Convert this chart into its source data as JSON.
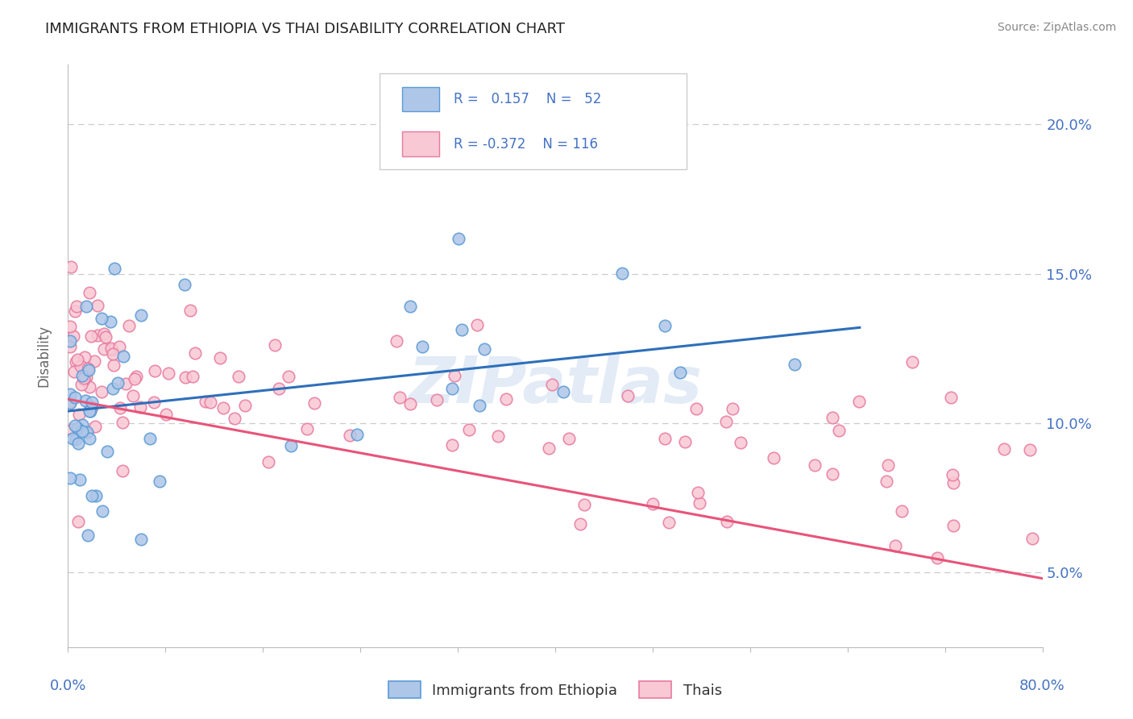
{
  "title": "IMMIGRANTS FROM ETHIOPIA VS THAI DISABILITY CORRELATION CHART",
  "source": "Source: ZipAtlas.com",
  "ylabel": "Disability",
  "ytick_values": [
    5.0,
    10.0,
    15.0,
    20.0
  ],
  "xmin": 0.0,
  "xmax": 80.0,
  "ymin": 2.5,
  "ymax": 22.0,
  "blue_R": 0.157,
  "blue_N": 52,
  "pink_R": -0.372,
  "pink_N": 116,
  "blue_color": "#aec6e8",
  "blue_edge_color": "#5b9bd5",
  "pink_color": "#f8c8d4",
  "pink_edge_color": "#e87aa0",
  "blue_line_color": "#2e6fba",
  "pink_line_color": "#e8547a",
  "legend_label_blue": "Immigrants from Ethiopia",
  "legend_label_pink": "Thais",
  "title_color": "#222222",
  "axis_label_color": "#4472c4",
  "background_color": "#ffffff",
  "grid_color": "#cccccc",
  "watermark_text": "ZIPatlas",
  "blue_trend_x": [
    0.0,
    65.0
  ],
  "blue_trend_y": [
    10.4,
    13.2
  ],
  "pink_trend_x": [
    0.0,
    80.0
  ],
  "pink_trend_y": [
    10.8,
    4.8
  ]
}
